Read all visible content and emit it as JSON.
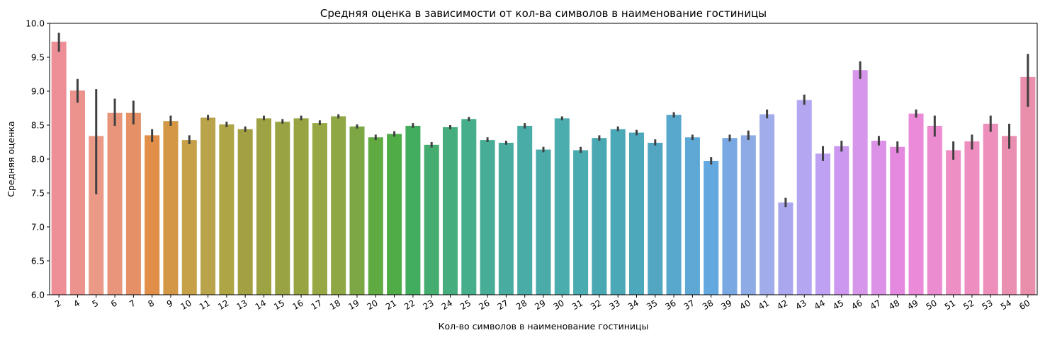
{
  "chart_data": {
    "type": "bar",
    "title": "Средняя оценка в зависимости от кол-ва символов в наименование гостиницы",
    "xlabel": "Кол-во символов в наименование гостиницы",
    "ylabel": "Средняя оценка",
    "ylim": [
      6.0,
      10.0
    ],
    "yticks": [
      "6.0",
      "6.5",
      "7.0",
      "7.5",
      "8.0",
      "8.5",
      "9.0",
      "9.5",
      "10.0"
    ],
    "categories": [
      "2",
      "4",
      "5",
      "6",
      "7",
      "8",
      "9",
      "10",
      "11",
      "12",
      "13",
      "14",
      "15",
      "16",
      "17",
      "18",
      "19",
      "20",
      "21",
      "22",
      "23",
      "24",
      "25",
      "26",
      "27",
      "28",
      "29",
      "30",
      "31",
      "32",
      "33",
      "34",
      "35",
      "36",
      "37",
      "38",
      "39",
      "40",
      "41",
      "42",
      "43",
      "44",
      "45",
      "46",
      "47",
      "48",
      "49",
      "50",
      "51",
      "52",
      "53",
      "54",
      "60"
    ],
    "values": [
      9.73,
      9.01,
      8.34,
      8.68,
      8.68,
      8.35,
      8.56,
      8.28,
      8.61,
      8.51,
      8.44,
      8.6,
      8.55,
      8.6,
      8.53,
      8.63,
      8.48,
      8.32,
      8.37,
      8.49,
      8.21,
      8.47,
      8.59,
      8.28,
      8.24,
      8.49,
      8.14,
      8.6,
      8.13,
      8.31,
      8.44,
      8.39,
      8.24,
      8.65,
      8.32,
      7.97,
      8.31,
      8.35,
      8.66,
      7.36,
      8.87,
      8.08,
      8.19,
      9.31,
      8.27,
      8.18,
      8.67,
      8.49,
      8.13,
      8.26,
      8.52,
      8.34,
      9.21
    ],
    "err_low": [
      9.58,
      8.83,
      7.48,
      8.49,
      8.51,
      8.25,
      8.49,
      8.22,
      8.57,
      8.47,
      8.4,
      8.57,
      8.52,
      8.57,
      8.5,
      8.6,
      8.45,
      8.28,
      8.33,
      8.46,
      8.17,
      8.44,
      8.56,
      8.25,
      8.21,
      8.45,
      8.1,
      8.57,
      8.09,
      8.27,
      8.41,
      8.35,
      8.2,
      8.61,
      8.28,
      7.92,
      8.26,
      8.28,
      8.6,
      7.29,
      8.8,
      7.97,
      8.11,
      9.18,
      8.2,
      8.09,
      8.61,
      8.33,
      7.99,
      8.14,
      8.4,
      8.15,
      8.77
    ],
    "err_high": [
      9.86,
      9.18,
      9.03,
      8.89,
      8.86,
      8.44,
      8.64,
      8.35,
      8.65,
      8.55,
      8.48,
      8.64,
      8.59,
      8.64,
      8.57,
      8.66,
      8.51,
      8.36,
      8.41,
      8.53,
      8.25,
      8.5,
      8.62,
      8.32,
      8.27,
      8.53,
      8.18,
      8.63,
      8.18,
      8.35,
      8.48,
      8.43,
      8.29,
      8.69,
      8.36,
      8.03,
      8.36,
      8.42,
      8.73,
      7.43,
      8.95,
      8.19,
      8.27,
      9.44,
      8.34,
      8.26,
      8.73,
      8.64,
      8.26,
      8.36,
      8.64,
      8.52,
      9.55
    ],
    "colors": [
      "#ee8f97",
      "#ec938e",
      "#ea9a86",
      "#e8957b",
      "#e59066",
      "#e18f48",
      "#d49746",
      "#c7a148",
      "#b9a44b",
      "#aea545",
      "#a3a043",
      "#9da242",
      "#9aa343",
      "#98a442",
      "#97a743",
      "#8fa744",
      "#7ca744",
      "#5faa41",
      "#4fac47",
      "#43ad5f",
      "#46ad71",
      "#46ad7e",
      "#47ae8b",
      "#47ad97",
      "#48aca0",
      "#49aca6",
      "#4aaba9",
      "#4badad",
      "#4aabb0",
      "#4aa8b3",
      "#4ba8b7",
      "#4da8bc",
      "#52a6c2",
      "#58a7cd",
      "#5ea8d6",
      "#63a9df",
      "#7aa8e2",
      "#8fabe6",
      "#a1aceb",
      "#aba7ef",
      "#b4a6f1",
      "#bea1f3",
      "#cc98ef",
      "#d696ea",
      "#dc92e6",
      "#e488e0",
      "#ea8ad8",
      "#ec8cd0",
      "#ed8ec4",
      "#ee8ec0",
      "#ed8ebb",
      "#ea8eb2",
      "#e98fac"
    ],
    "error_bar_color": "#404040",
    "grid": false,
    "legend": "none"
  }
}
